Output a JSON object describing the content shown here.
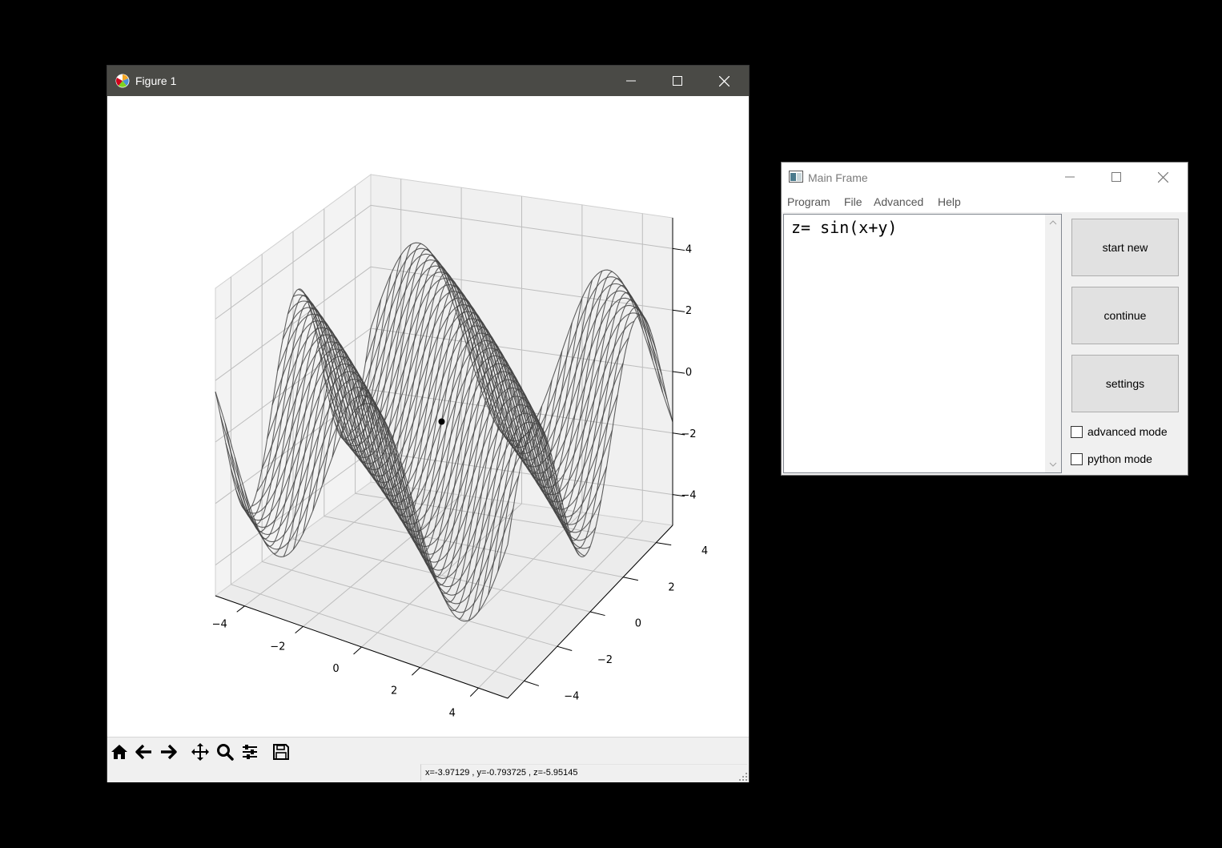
{
  "figure_window": {
    "title": "Figure 1",
    "toolbar": {
      "home_icon": "home-icon",
      "back_icon": "arrow-left-icon",
      "forward_icon": "arrow-right-icon",
      "pan_icon": "move-icon",
      "zoom_icon": "magnifier-icon",
      "configure_icon": "sliders-icon",
      "save_icon": "floppy-disk-icon"
    },
    "coordinate_readout": "x=-3.97129    , y=-0.793725    , z=-5.95145"
  },
  "chart_data": {
    "type": "3d-surface-wireframe",
    "function": "z = sin(x+y)",
    "x_range": [
      -5,
      5
    ],
    "y_range": [
      -5,
      5
    ],
    "z_range": [
      -5,
      5
    ],
    "x_ticks": [
      "−4",
      "−2",
      "0",
      "2",
      "4"
    ],
    "y_ticks": [
      "−4",
      "−2",
      "0",
      "2",
      "4"
    ],
    "z_ticks": [
      "−4",
      "−2",
      "0",
      "2",
      "4"
    ],
    "amplitude": 3,
    "grid": true,
    "marker_point": {
      "x": 0,
      "y": 0,
      "z": 0
    },
    "wire_color": "#444444"
  },
  "main_window": {
    "title": "Main Frame",
    "menu": [
      "Program",
      "File",
      "Advanced",
      "Help"
    ],
    "editor_text": "z= sin(x+y)",
    "buttons": {
      "start_new": "start new",
      "continue": "continue",
      "settings": "settings"
    },
    "checkboxes": {
      "advanced_mode": "advanced mode",
      "python_mode": "python mode"
    }
  }
}
